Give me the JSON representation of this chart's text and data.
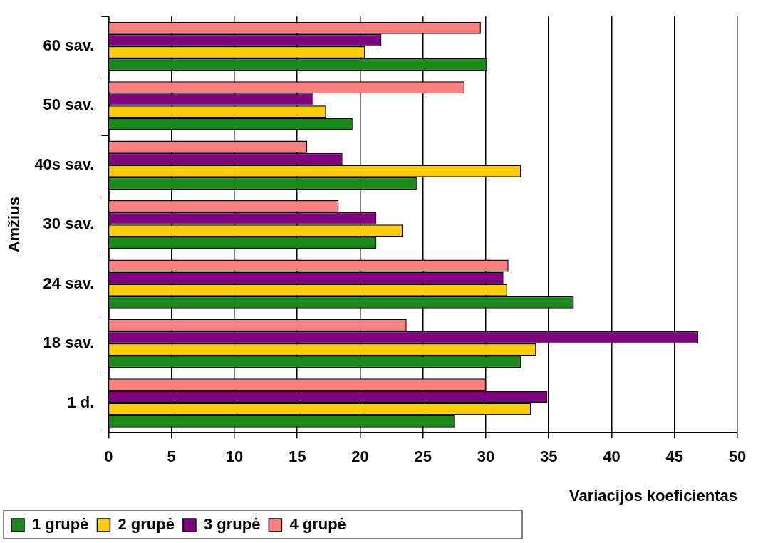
{
  "chart_data": {
    "type": "bar",
    "orientation": "horizontal",
    "xlabel": "Variacijos koeficientas",
    "ylabel": "Amžius",
    "categories": [
      "60 sav.",
      "50 sav.",
      "40s sav.",
      "30 sav.",
      "24 sav.",
      "18 sav.",
      "1 d."
    ],
    "series": [
      {
        "name": "1 grupė",
        "color": "#1a8a1a",
        "values": [
          30.1,
          19.4,
          24.5,
          21.3,
          37.0,
          32.8,
          27.5
        ]
      },
      {
        "name": "2 grupė",
        "color": "#ffcc00",
        "values": [
          20.4,
          17.3,
          32.8,
          23.4,
          31.7,
          34.0,
          33.6
        ]
      },
      {
        "name": "3 grupė",
        "color": "#800080",
        "values": [
          21.7,
          16.3,
          18.6,
          21.3,
          31.4,
          46.9,
          34.9
        ]
      },
      {
        "name": "4 grupė",
        "color": "#ff8080",
        "values": [
          29.6,
          28.3,
          15.8,
          18.3,
          31.8,
          23.7,
          30.0
        ]
      }
    ],
    "xlim": [
      0,
      50
    ],
    "xticks": [
      0,
      5,
      10,
      15,
      20,
      25,
      30,
      35,
      40,
      45,
      50
    ],
    "grid": "x",
    "legend": "bottom left"
  }
}
